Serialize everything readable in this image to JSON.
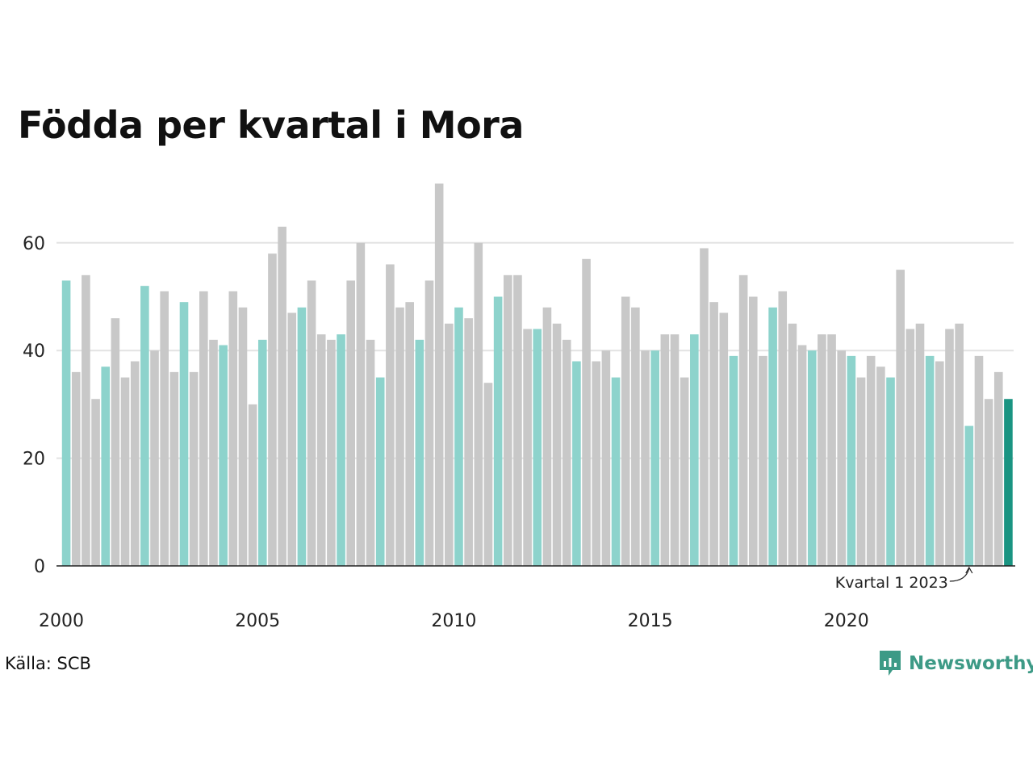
{
  "chart_data": {
    "type": "bar",
    "title": "Födda per kvartal i Mora",
    "xlabel": "",
    "ylabel": "",
    "start_year": 2000,
    "quarters_per_year": 4,
    "ylim": [
      0,
      71
    ],
    "yticks": [
      0,
      20,
      40,
      60
    ],
    "xticks": [
      "2000",
      "2005",
      "2010",
      "2015",
      "2020"
    ],
    "grid": true,
    "values": [
      53,
      36,
      54,
      31,
      37,
      46,
      35,
      38,
      52,
      40,
      51,
      36,
      49,
      36,
      51,
      42,
      41,
      51,
      48,
      30,
      42,
      58,
      63,
      47,
      48,
      53,
      43,
      42,
      43,
      53,
      60,
      42,
      35,
      56,
      48,
      49,
      42,
      53,
      71,
      45,
      48,
      46,
      60,
      34,
      50,
      54,
      54,
      44,
      44,
      48,
      45,
      42,
      38,
      57,
      38,
      40,
      35,
      50,
      48,
      40,
      40,
      43,
      43,
      35,
      43,
      59,
      49,
      47,
      39,
      54,
      50,
      39,
      48,
      51,
      45,
      41,
      40,
      43,
      43,
      40,
      39,
      35,
      39,
      37,
      35,
      55,
      44,
      45,
      39,
      38,
      44,
      45,
      26,
      39,
      31,
      36,
      31
    ],
    "colors": {
      "q1": "#8dd3cc",
      "other": "#c8c8c8",
      "latest": "#1a9482",
      "grid": "#e3e3e3",
      "axis": "#222222"
    },
    "annotation": {
      "text": "Kvartal 1 2023",
      "quarter_index": 92
    }
  },
  "footer": {
    "source": "Källa: SCB",
    "brand": "Newsworthy"
  }
}
